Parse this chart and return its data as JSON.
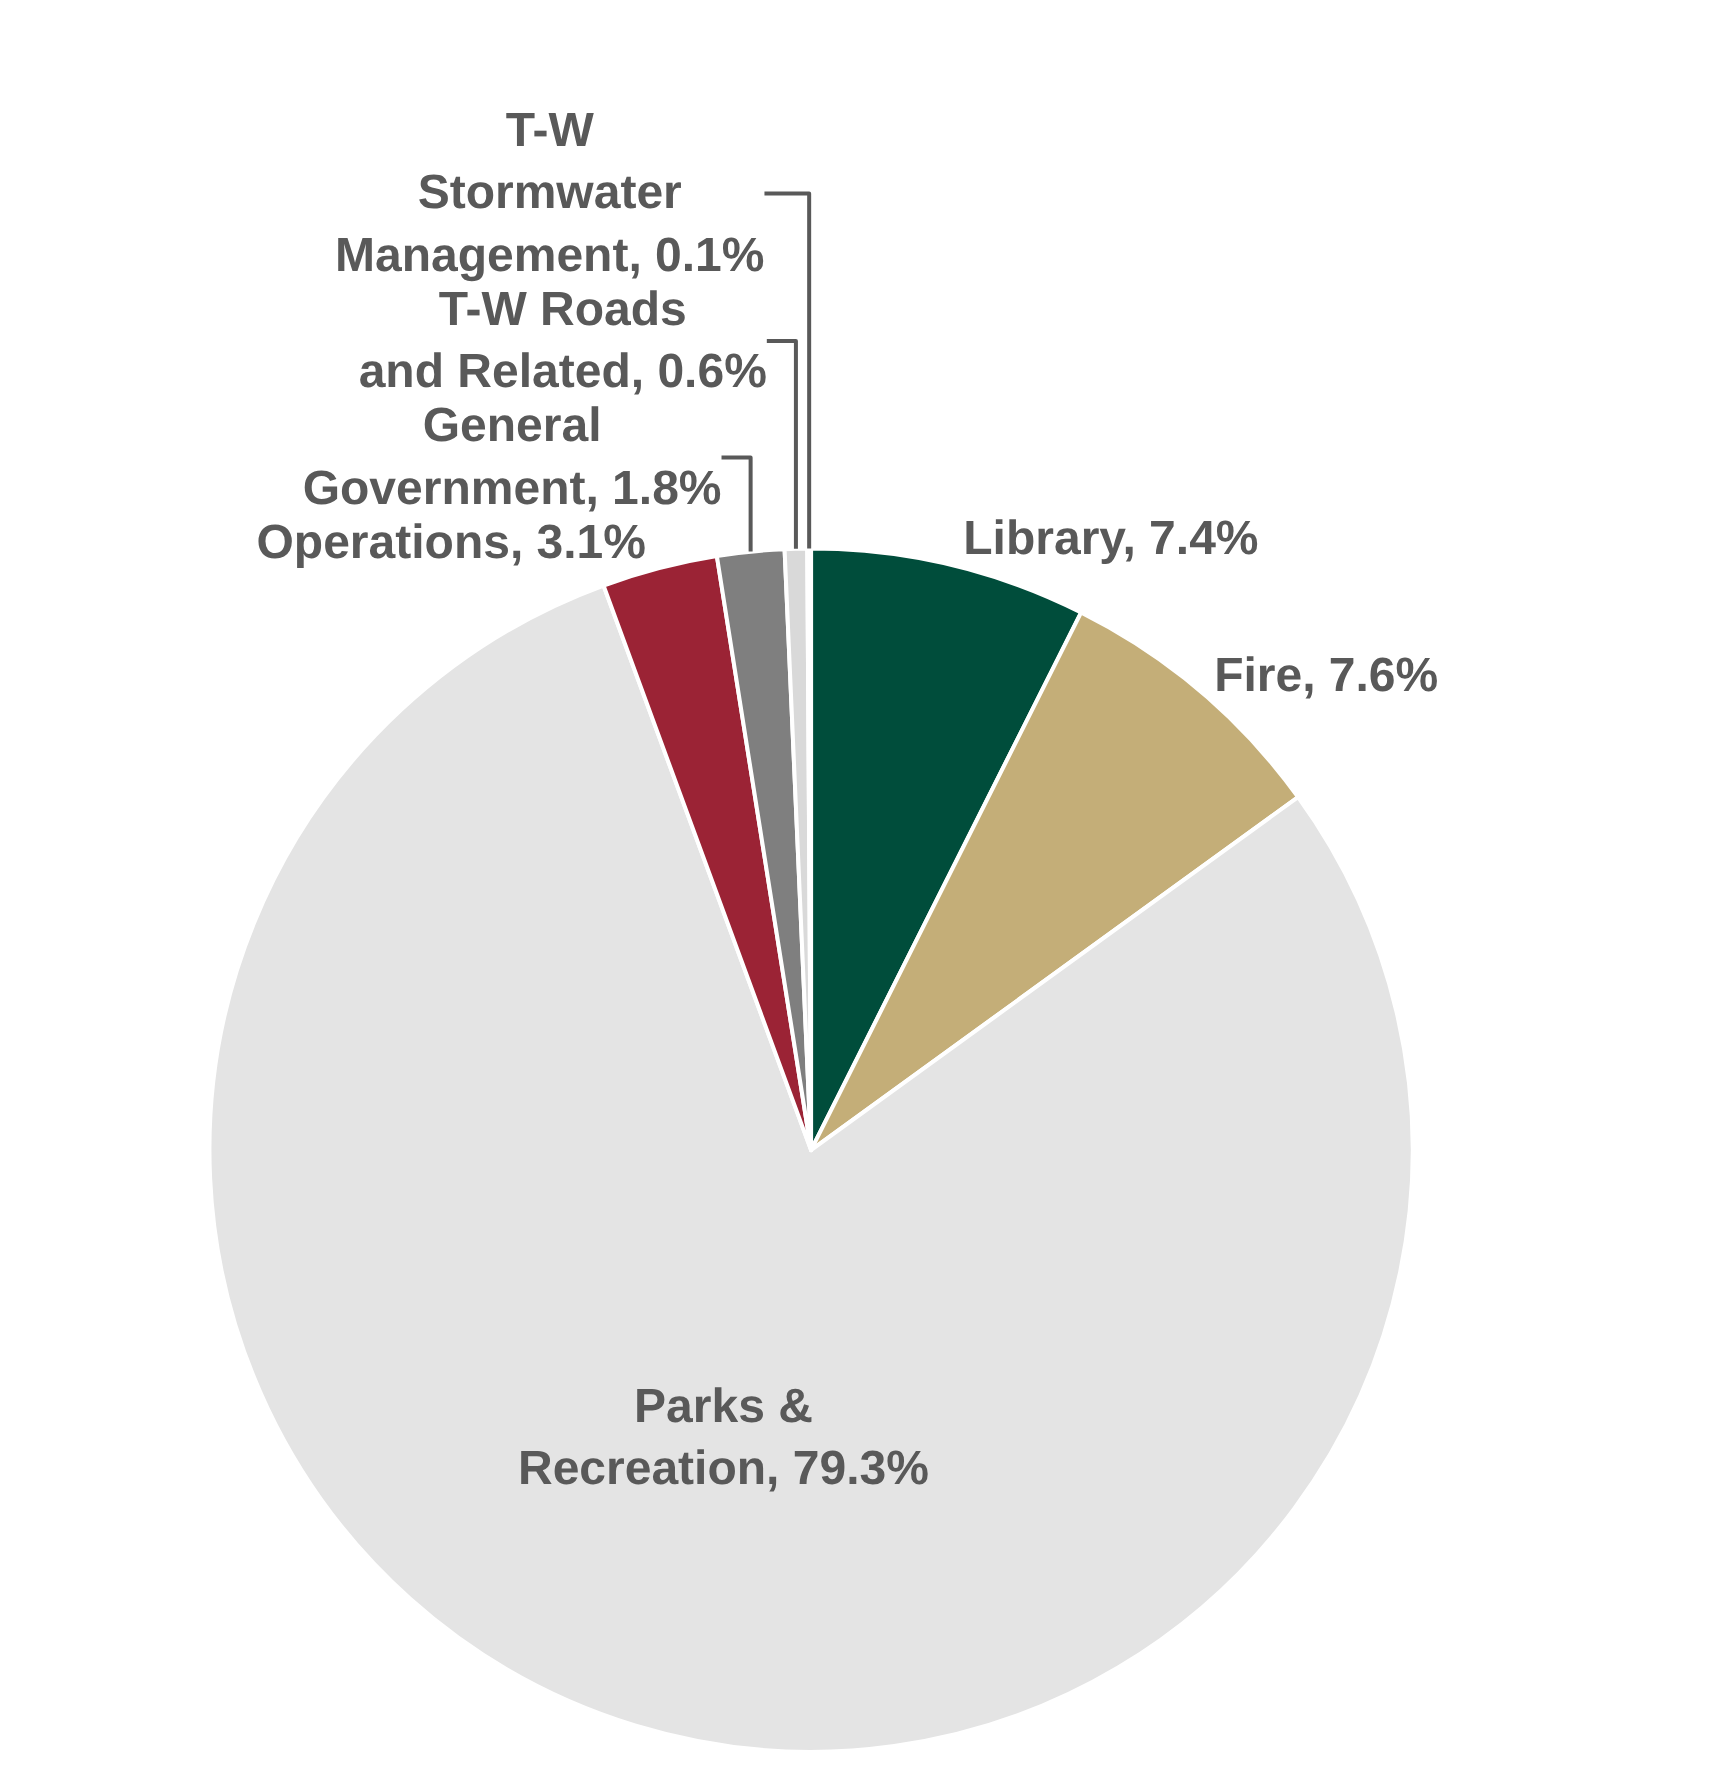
{
  "chart_data": {
    "type": "pie",
    "categories": [
      "Library",
      "Fire",
      "Parks & Recreation",
      "Operations",
      "General Government",
      "T-W Roads and Related",
      "T-W Stormwater Management"
    ],
    "values": [
      7.4,
      7.6,
      79.3,
      3.1,
      1.8,
      0.6,
      0.1
    ],
    "value_labels": [
      "7.4%",
      "7.6%",
      "79.3%",
      "3.1%",
      "1.8%",
      "0.6%",
      "0.1%"
    ],
    "colors": [
      "#004d3b",
      "#c4ae78",
      "#e4e4e4",
      "#9b2335",
      "#7f7f7f",
      "#d9d9d9",
      "#a5a5a5"
    ],
    "legend": false
  }
}
